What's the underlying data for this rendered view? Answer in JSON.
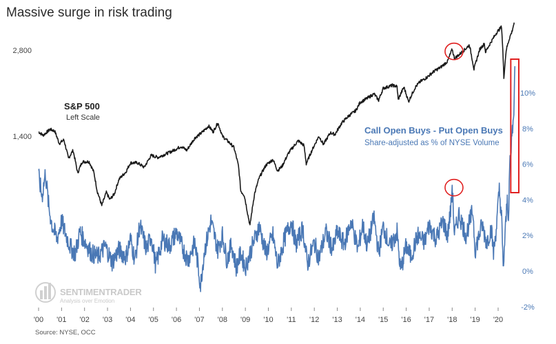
{
  "chart_data": {
    "type": "line",
    "title": "Massive surge in risk trading",
    "source": "Source: NYSE, OCC",
    "watermark": {
      "name": "SENTIMENTRADER",
      "tagline": "Analysis over Emotion"
    },
    "x_ticks": [
      "'00",
      "'01",
      "'02",
      "'03",
      "'04",
      "'05",
      "'06",
      "'07",
      "'08",
      "'09",
      "'10",
      "'11",
      "'12",
      "'13",
      "'14",
      "'15",
      "'16",
      "'17",
      "'18",
      "'19",
      "'20"
    ],
    "left_axis": {
      "ticks": [
        "1,400",
        "2,800"
      ],
      "values": [
        1400,
        2800
      ],
      "scale": "log"
    },
    "right_axis": {
      "ticks": [
        "-2%",
        "0%",
        "2%",
        "4%",
        "6%",
        "8%",
        "10%"
      ],
      "values": [
        -2,
        0,
        2,
        4,
        6,
        8,
        10
      ]
    },
    "grid": false,
    "series": [
      {
        "name": "S&P 500",
        "sublabel": "Left Scale",
        "axis": "left",
        "color": "#1a1a1a",
        "points": [
          [
            2000.0,
            1450
          ],
          [
            2000.2,
            1410
          ],
          [
            2000.5,
            1480
          ],
          [
            2000.7,
            1460
          ],
          [
            2000.9,
            1320
          ],
          [
            2001.1,
            1360
          ],
          [
            2001.3,
            1170
          ],
          [
            2001.5,
            1250
          ],
          [
            2001.7,
            1040
          ],
          [
            2001.9,
            1140
          ],
          [
            2002.2,
            1140
          ],
          [
            2002.4,
            1050
          ],
          [
            2002.55,
            900
          ],
          [
            2002.75,
            800
          ],
          [
            2002.95,
            890
          ],
          [
            2003.1,
            840
          ],
          [
            2003.3,
            880
          ],
          [
            2003.5,
            990
          ],
          [
            2003.8,
            1050
          ],
          [
            2004.0,
            1130
          ],
          [
            2004.3,
            1130
          ],
          [
            2004.6,
            1090
          ],
          [
            2004.9,
            1200
          ],
          [
            2005.2,
            1180
          ],
          [
            2005.5,
            1210
          ],
          [
            2005.8,
            1240
          ],
          [
            2006.2,
            1290
          ],
          [
            2006.45,
            1250
          ],
          [
            2006.8,
            1380
          ],
          [
            2007.1,
            1440
          ],
          [
            2007.4,
            1520
          ],
          [
            2007.6,
            1450
          ],
          [
            2007.8,
            1560
          ],
          [
            2008.0,
            1400
          ],
          [
            2008.3,
            1330
          ],
          [
            2008.5,
            1280
          ],
          [
            2008.7,
            1100
          ],
          [
            2008.8,
            900
          ],
          [
            2008.95,
            870
          ],
          [
            2009.1,
            750
          ],
          [
            2009.2,
            680
          ],
          [
            2009.4,
            880
          ],
          [
            2009.6,
            1000
          ],
          [
            2009.9,
            1110
          ],
          [
            2010.2,
            1160
          ],
          [
            2010.4,
            1060
          ],
          [
            2010.6,
            1100
          ],
          [
            2010.9,
            1230
          ],
          [
            2011.3,
            1350
          ],
          [
            2011.55,
            1300
          ],
          [
            2011.65,
            1120
          ],
          [
            2011.9,
            1250
          ],
          [
            2012.2,
            1400
          ],
          [
            2012.4,
            1310
          ],
          [
            2012.7,
            1440
          ],
          [
            2012.9,
            1420
          ],
          [
            2013.2,
            1560
          ],
          [
            2013.5,
            1650
          ],
          [
            2013.8,
            1720
          ],
          [
            2014.0,
            1840
          ],
          [
            2014.3,
            1900
          ],
          [
            2014.6,
            1970
          ],
          [
            2014.8,
            1870
          ],
          [
            2015.0,
            2060
          ],
          [
            2015.4,
            2110
          ],
          [
            2015.6,
            2090
          ],
          [
            2015.65,
            1880
          ],
          [
            2015.9,
            2080
          ],
          [
            2016.1,
            1850
          ],
          [
            2016.4,
            2080
          ],
          [
            2016.6,
            2170
          ],
          [
            2016.9,
            2250
          ],
          [
            2017.2,
            2360
          ],
          [
            2017.5,
            2440
          ],
          [
            2017.8,
            2560
          ],
          [
            2018.0,
            2820
          ],
          [
            2018.1,
            2620
          ],
          [
            2018.3,
            2700
          ],
          [
            2018.6,
            2840
          ],
          [
            2018.75,
            2920
          ],
          [
            2018.95,
            2400
          ],
          [
            2019.2,
            2820
          ],
          [
            2019.4,
            2950
          ],
          [
            2019.45,
            2760
          ],
          [
            2019.7,
            3000
          ],
          [
            2019.95,
            3240
          ],
          [
            2020.15,
            3380
          ],
          [
            2020.22,
            2600
          ],
          [
            2020.25,
            2240
          ],
          [
            2020.35,
            2800
          ],
          [
            2020.5,
            3100
          ],
          [
            2020.6,
            3250
          ],
          [
            2020.7,
            3500
          ]
        ]
      },
      {
        "name": "Call Open Buys - Put Open Buys",
        "sublabel": "Share-adjusted as % of NYSE Volume",
        "axis": "right",
        "color": "#4a78b5",
        "points": [
          [
            2000.0,
            5.3
          ],
          [
            2000.15,
            4.2
          ],
          [
            2000.3,
            5.5
          ],
          [
            2000.45,
            3.5
          ],
          [
            2000.6,
            2.5
          ],
          [
            2000.8,
            1.8
          ],
          [
            2001.0,
            2.8
          ],
          [
            2001.2,
            2.0
          ],
          [
            2001.4,
            1.3
          ],
          [
            2001.6,
            1.0
          ],
          [
            2001.8,
            2.2
          ],
          [
            2002.0,
            1.7
          ],
          [
            2002.3,
            1.0
          ],
          [
            2002.6,
            0.8
          ],
          [
            2002.9,
            1.4
          ],
          [
            2003.2,
            0.5
          ],
          [
            2003.5,
            1.2
          ],
          [
            2003.8,
            0.8
          ],
          [
            2004.0,
            1.8
          ],
          [
            2004.2,
            0.6
          ],
          [
            2004.4,
            2.6
          ],
          [
            2004.7,
            1.2
          ],
          [
            2004.9,
            2.0
          ],
          [
            2005.1,
            0.3
          ],
          [
            2005.4,
            1.8
          ],
          [
            2005.7,
            1.4
          ],
          [
            2006.0,
            2.2
          ],
          [
            2006.3,
            1.2
          ],
          [
            2006.5,
            0.6
          ],
          [
            2006.8,
            1.6
          ],
          [
            2006.95,
            0.2
          ],
          [
            2007.05,
            -0.8
          ],
          [
            2007.2,
            1.0
          ],
          [
            2007.5,
            2.8
          ],
          [
            2007.8,
            1.2
          ],
          [
            2008.0,
            2.0
          ],
          [
            2008.2,
            0.6
          ],
          [
            2008.4,
            1.5
          ],
          [
            2008.6,
            0.2
          ],
          [
            2008.8,
            1.0
          ],
          [
            2009.0,
            0.2
          ],
          [
            2009.3,
            1.4
          ],
          [
            2009.6,
            2.5
          ],
          [
            2009.9,
            1.0
          ],
          [
            2010.2,
            2.0
          ],
          [
            2010.4,
            0.3
          ],
          [
            2010.7,
            1.8
          ],
          [
            2011.0,
            2.8
          ],
          [
            2011.2,
            1.5
          ],
          [
            2011.5,
            2.4
          ],
          [
            2011.7,
            0.4
          ],
          [
            2012.0,
            1.6
          ],
          [
            2012.2,
            0.7
          ],
          [
            2012.5,
            2.2
          ],
          [
            2012.8,
            1.2
          ],
          [
            2013.0,
            2.2
          ],
          [
            2013.3,
            1.5
          ],
          [
            2013.6,
            2.8
          ],
          [
            2013.9,
            1.2
          ],
          [
            2014.1,
            2.6
          ],
          [
            2014.3,
            1.4
          ],
          [
            2014.6,
            3.0
          ],
          [
            2014.8,
            1.0
          ],
          [
            2015.0,
            2.5
          ],
          [
            2015.3,
            1.3
          ],
          [
            2015.6,
            2.2
          ],
          [
            2015.75,
            0.0
          ],
          [
            2016.0,
            1.4
          ],
          [
            2016.2,
            0.8
          ],
          [
            2016.5,
            2.0
          ],
          [
            2016.8,
            1.6
          ],
          [
            2017.0,
            2.6
          ],
          [
            2017.3,
            1.8
          ],
          [
            2017.6,
            2.8
          ],
          [
            2017.8,
            2.0
          ],
          [
            2017.95,
            3.6
          ],
          [
            2018.0,
            4.8
          ],
          [
            2018.1,
            2.0
          ],
          [
            2018.3,
            3.2
          ],
          [
            2018.6,
            2.0
          ],
          [
            2018.9,
            3.4
          ],
          [
            2019.0,
            1.2
          ],
          [
            2019.3,
            2.6
          ],
          [
            2019.5,
            1.6
          ],
          [
            2019.7,
            2.4
          ],
          [
            2019.8,
            1.0
          ],
          [
            2019.95,
            2.8
          ],
          [
            2020.05,
            4.6
          ],
          [
            2020.15,
            3.0
          ],
          [
            2020.22,
            0.0
          ],
          [
            2020.3,
            2.0
          ],
          [
            2020.4,
            4.0
          ],
          [
            2020.45,
            3.0
          ],
          [
            2020.5,
            5.8
          ],
          [
            2020.55,
            6.2
          ],
          [
            2020.6,
            7.8
          ],
          [
            2020.65,
            8.2
          ],
          [
            2020.7,
            9.8
          ],
          [
            2020.73,
            11.5
          ]
        ]
      }
    ],
    "annotations": [
      {
        "shape": "circle",
        "target": "S&P 500",
        "x": 2018.05
      },
      {
        "shape": "circle",
        "target": "Call Open Buys - Put Open Buys",
        "x": 2018.05
      },
      {
        "shape": "rectangle",
        "target": "Call Open Buys - Put Open Buys",
        "x_range": [
          2020.55,
          2020.9
        ]
      }
    ]
  }
}
